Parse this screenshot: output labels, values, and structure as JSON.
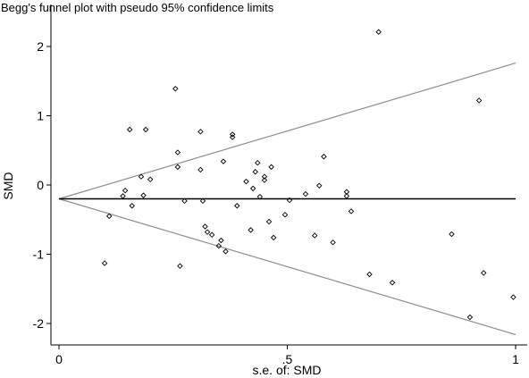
{
  "chart_data": {
    "type": "scatter",
    "title": "Begg's funnel plot with pseudo 95% confidence limits",
    "xlabel": "s.e. of: SMD",
    "ylabel": "SMD",
    "xlim": [
      0,
      1
    ],
    "ylim": [
      -2.2,
      2.3
    ],
    "xticks": [
      {
        "value": 0,
        "label": "0"
      },
      {
        "value": 0.5,
        "label": ".5"
      },
      {
        "value": 1,
        "label": "1"
      }
    ],
    "yticks": [
      {
        "value": -2,
        "label": "-2"
      },
      {
        "value": -1,
        "label": "-1"
      },
      {
        "value": 0,
        "label": "0"
      },
      {
        "value": 1,
        "label": "1"
      },
      {
        "value": 2,
        "label": "2"
      }
    ],
    "pooled_estimate": -0.2,
    "confidence_limits": {
      "upper": [
        [
          0,
          -0.2
        ],
        [
          1,
          1.76
        ]
      ],
      "lower": [
        [
          0,
          -0.2
        ],
        [
          1,
          -2.16
        ]
      ]
    },
    "marker": "hollow-diamond",
    "colors": {
      "points": "#000000",
      "limits": "#8c8c8c",
      "pooled_line": "#000000"
    },
    "points": [
      {
        "x": 0.1,
        "y": -1.13
      },
      {
        "x": 0.11,
        "y": -0.45
      },
      {
        "x": 0.14,
        "y": -0.16
      },
      {
        "x": 0.145,
        "y": -0.08
      },
      {
        "x": 0.155,
        "y": 0.8
      },
      {
        "x": 0.16,
        "y": -0.3
      },
      {
        "x": 0.18,
        "y": 0.12
      },
      {
        "x": 0.185,
        "y": -0.15
      },
      {
        "x": 0.19,
        "y": 0.8
      },
      {
        "x": 0.2,
        "y": 0.08
      },
      {
        "x": 0.255,
        "y": 1.39
      },
      {
        "x": 0.26,
        "y": 0.47
      },
      {
        "x": 0.26,
        "y": 0.26
      },
      {
        "x": 0.265,
        "y": -1.17
      },
      {
        "x": 0.275,
        "y": -0.23
      },
      {
        "x": 0.31,
        "y": 0.77
      },
      {
        "x": 0.31,
        "y": 0.22
      },
      {
        "x": 0.315,
        "y": -0.23
      },
      {
        "x": 0.32,
        "y": -0.6
      },
      {
        "x": 0.325,
        "y": -0.68
      },
      {
        "x": 0.335,
        "y": -0.72
      },
      {
        "x": 0.35,
        "y": -0.88
      },
      {
        "x": 0.355,
        "y": -0.8
      },
      {
        "x": 0.36,
        "y": 0.34
      },
      {
        "x": 0.365,
        "y": -0.96
      },
      {
        "x": 0.38,
        "y": 0.73
      },
      {
        "x": 0.38,
        "y": 0.69
      },
      {
        "x": 0.39,
        "y": -0.3
      },
      {
        "x": 0.41,
        "y": 0.05
      },
      {
        "x": 0.42,
        "y": -0.65
      },
      {
        "x": 0.425,
        "y": -0.05
      },
      {
        "x": 0.43,
        "y": 0.19
      },
      {
        "x": 0.435,
        "y": 0.32
      },
      {
        "x": 0.44,
        "y": -0.17
      },
      {
        "x": 0.45,
        "y": 0.12
      },
      {
        "x": 0.45,
        "y": 0.07
      },
      {
        "x": 0.46,
        "y": -0.53
      },
      {
        "x": 0.465,
        "y": 0.26
      },
      {
        "x": 0.47,
        "y": -0.76
      },
      {
        "x": 0.495,
        "y": -0.43
      },
      {
        "x": 0.505,
        "y": -0.22
      },
      {
        "x": 0.54,
        "y": -0.13
      },
      {
        "x": 0.56,
        "y": -0.73
      },
      {
        "x": 0.57,
        "y": -0.01
      },
      {
        "x": 0.58,
        "y": 0.41
      },
      {
        "x": 0.6,
        "y": -0.83
      },
      {
        "x": 0.63,
        "y": -0.1
      },
      {
        "x": 0.63,
        "y": -0.16
      },
      {
        "x": 0.64,
        "y": -0.38
      },
      {
        "x": 0.68,
        "y": -1.29
      },
      {
        "x": 0.7,
        "y": 2.21
      },
      {
        "x": 0.73,
        "y": -1.41
      },
      {
        "x": 0.86,
        "y": -0.71
      },
      {
        "x": 0.9,
        "y": -1.91
      },
      {
        "x": 0.92,
        "y": 1.22
      },
      {
        "x": 0.93,
        "y": -1.27
      },
      {
        "x": 0.995,
        "y": -1.62
      }
    ]
  }
}
